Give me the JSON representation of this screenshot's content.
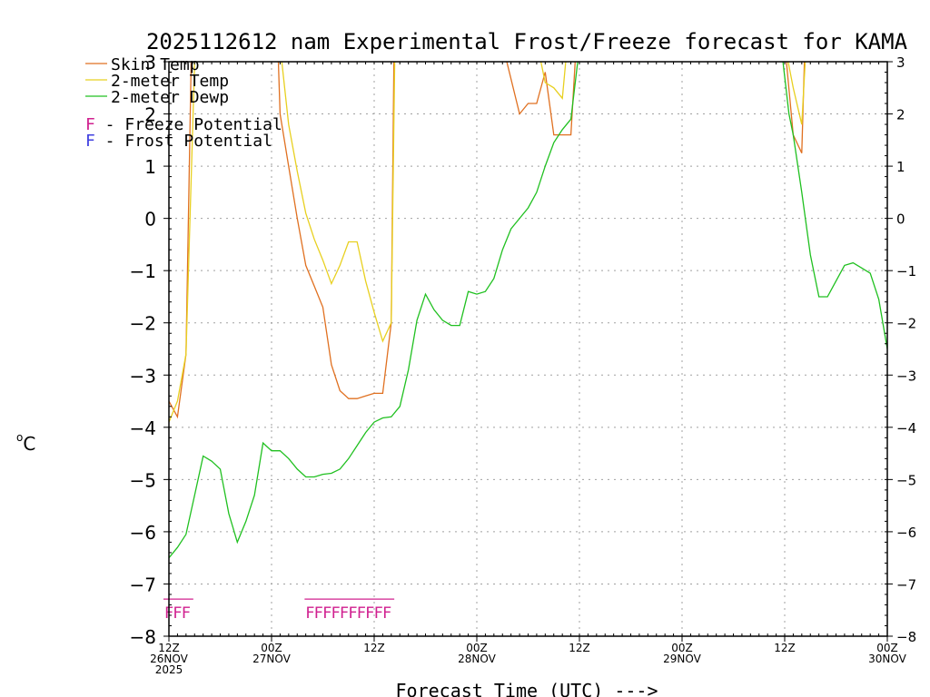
{
  "chart_data": {
    "type": "line",
    "title": "2025112612 nam Experimental Frost/Freeze forecast for KAMA",
    "xlabel": "Forecast Time (UTC) --->",
    "ylabel": "oC",
    "ylabel_super": "o",
    "ylabel_main": "C",
    "ylim": [
      -8,
      3
    ],
    "xlim_hours": [
      0,
      84
    ],
    "y_ticks": [
      3,
      2,
      1,
      0,
      -1,
      -2,
      -3,
      -4,
      -5,
      -6,
      -7,
      -8
    ],
    "x_ticks": [
      {
        "hour": 0,
        "line1": "12Z",
        "line2": "26NOV",
        "line3": "2025"
      },
      {
        "hour": 12,
        "line1": "00Z",
        "line2": "27NOV",
        "line3": ""
      },
      {
        "hour": 24,
        "line1": "12Z",
        "line2": "",
        "line3": ""
      },
      {
        "hour": 36,
        "line1": "00Z",
        "line2": "28NOV",
        "line3": ""
      },
      {
        "hour": 48,
        "line1": "12Z",
        "line2": "",
        "line3": ""
      },
      {
        "hour": 60,
        "line1": "00Z",
        "line2": "29NOV",
        "line3": ""
      },
      {
        "hour": 72,
        "line1": "12Z",
        "line2": "",
        "line3": ""
      },
      {
        "hour": 84,
        "line1": "00Z",
        "line2": "30NOV",
        "line3": ""
      }
    ],
    "legend": [
      {
        "label": "Skin Temp",
        "color": "#e07020"
      },
      {
        "label": "2-meter Temp",
        "color": "#e8d020"
      },
      {
        "label": "2-meter Dewp",
        "color": "#20c020"
      }
    ],
    "potential_legend": [
      {
        "letter": "F",
        "text": " - Freeze Potential",
        "color": "#d0208f"
      },
      {
        "letter": "F",
        "text": " - Frost Potential",
        "color": "#4040e0"
      }
    ],
    "series": [
      {
        "name": "Skin Temp",
        "color": "#e07020",
        "segments": [
          [
            [
              0,
              -3.5
            ],
            [
              1,
              -3.8
            ],
            [
              2,
              -2.6
            ],
            [
              2.6,
              3.0
            ]
          ],
          [
            [
              12.8,
              3.0
            ],
            [
              13,
              2.0
            ],
            [
              14,
              1.0
            ],
            [
              15,
              0.0
            ],
            [
              16,
              -0.9
            ],
            [
              17,
              -1.3
            ],
            [
              18,
              -1.7
            ],
            [
              19,
              -2.8
            ],
            [
              20,
              -3.3
            ],
            [
              21,
              -3.45
            ],
            [
              22,
              -3.45
            ],
            [
              23,
              -3.4
            ],
            [
              24,
              -3.35
            ],
            [
              25,
              -3.35
            ],
            [
              26,
              -2.0
            ],
            [
              26.3,
              3.0
            ]
          ],
          [
            [
              39.5,
              3.0
            ],
            [
              41,
              2.0
            ],
            [
              42,
              2.2
            ],
            [
              43,
              2.2
            ],
            [
              44,
              2.8
            ],
            [
              45,
              1.6
            ],
            [
              46,
              1.6
            ],
            [
              47,
              1.6
            ],
            [
              47.5,
              3.0
            ]
          ],
          [
            [
              72.2,
              3.0
            ],
            [
              73,
              1.6
            ],
            [
              74,
              1.25
            ],
            [
              74.3,
              3.0
            ]
          ]
        ]
      },
      {
        "name": "2-meter Temp",
        "color": "#e8d020",
        "segments": [
          [
            [
              0,
              -3.9
            ],
            [
              1,
              -3.5
            ],
            [
              2,
              -2.6
            ],
            [
              3,
              3.0
            ]
          ],
          [
            [
              13.2,
              3.0
            ],
            [
              14,
              1.8
            ],
            [
              15,
              0.9
            ],
            [
              16,
              0.1
            ],
            [
              17,
              -0.4
            ],
            [
              18,
              -0.8
            ],
            [
              19,
              -1.25
            ],
            [
              20,
              -0.9
            ],
            [
              21,
              -0.45
            ],
            [
              22,
              -0.45
            ],
            [
              23,
              -1.2
            ],
            [
              24,
              -1.8
            ],
            [
              25,
              -2.35
            ],
            [
              26,
              -2.0
            ],
            [
              26.4,
              3.0
            ]
          ],
          [
            [
              43.5,
              3.0
            ],
            [
              44,
              2.6
            ],
            [
              45,
              2.5
            ],
            [
              46,
              2.3
            ],
            [
              46.4,
              3.0
            ]
          ],
          [
            [
              72.4,
              3.0
            ],
            [
              73,
              2.5
            ],
            [
              74,
              1.8
            ],
            [
              74.4,
              3.0
            ]
          ]
        ]
      },
      {
        "name": "2-meter Dewp",
        "color": "#20c020",
        "segments": [
          [
            [
              0,
              -6.5
            ],
            [
              1,
              -6.3
            ],
            [
              2,
              -6.05
            ],
            [
              3,
              -5.3
            ],
            [
              4,
              -4.55
            ],
            [
              5,
              -4.65
            ],
            [
              6,
              -4.8
            ],
            [
              7,
              -5.65
            ],
            [
              8,
              -6.2
            ],
            [
              9,
              -5.8
            ],
            [
              10,
              -5.3
            ],
            [
              11,
              -4.3
            ],
            [
              12,
              -4.45
            ],
            [
              13,
              -4.45
            ],
            [
              14,
              -4.6
            ],
            [
              15,
              -4.8
            ],
            [
              16,
              -4.95
            ],
            [
              17,
              -4.95
            ],
            [
              18,
              -4.9
            ],
            [
              19,
              -4.88
            ],
            [
              20,
              -4.8
            ],
            [
              21,
              -4.6
            ],
            [
              22,
              -4.35
            ],
            [
              23,
              -4.1
            ],
            [
              24,
              -3.9
            ],
            [
              25,
              -3.82
            ],
            [
              26,
              -3.8
            ],
            [
              27,
              -3.6
            ],
            [
              28,
              -2.9
            ],
            [
              29,
              -1.95
            ],
            [
              30,
              -1.45
            ],
            [
              31,
              -1.75
            ],
            [
              32,
              -1.95
            ],
            [
              33,
              -2.05
            ],
            [
              34,
              -2.05
            ],
            [
              35,
              -1.4
            ],
            [
              36,
              -1.45
            ],
            [
              37,
              -1.4
            ],
            [
              38,
              -1.15
            ],
            [
              39,
              -0.6
            ],
            [
              40,
              -0.2
            ],
            [
              41,
              0.0
            ],
            [
              42,
              0.2
            ],
            [
              43,
              0.5
            ],
            [
              44,
              1.0
            ],
            [
              45,
              1.45
            ],
            [
              46,
              1.7
            ],
            [
              47,
              1.9
            ],
            [
              47.8,
              3.0
            ]
          ],
          [
            [
              71.8,
              3.0
            ],
            [
              72.5,
              2.0
            ],
            [
              73,
              1.6
            ],
            [
              74,
              0.5
            ],
            [
              75,
              -0.7
            ],
            [
              76,
              -1.5
            ],
            [
              77,
              -1.5
            ],
            [
              78,
              -1.2
            ],
            [
              79,
              -0.9
            ],
            [
              80,
              -0.85
            ],
            [
              81,
              -0.95
            ],
            [
              82,
              -1.05
            ],
            [
              83,
              -1.55
            ],
            [
              84,
              -2.5
            ]
          ]
        ]
      }
    ],
    "freeze_potential": {
      "color": "#d0208f",
      "letter": "F",
      "groups": [
        {
          "hours": [
            0,
            1,
            2
          ]
        },
        {
          "hours": [
            16.5,
            17.5,
            18.5,
            19.5,
            20.5,
            21.5,
            22.5,
            23.5,
            24.5,
            25.5
          ]
        }
      ]
    }
  }
}
